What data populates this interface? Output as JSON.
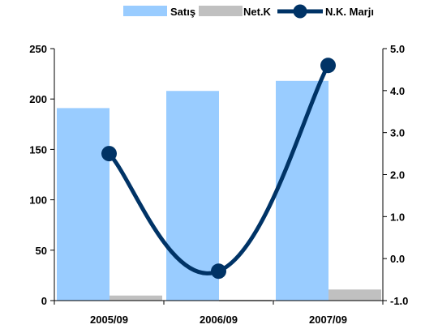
{
  "chart_data": {
    "type": "bar",
    "categories": [
      "2005/09",
      "2006/09",
      "2007/09"
    ],
    "series": [
      {
        "name": "Satış",
        "kind": "bar",
        "axis": "left",
        "color": "#99ccff",
        "values": [
          191,
          208,
          218
        ]
      },
      {
        "name": "Net.K",
        "kind": "bar",
        "axis": "left",
        "color": "#c0c0c0",
        "values": [
          5,
          -1,
          11
        ]
      },
      {
        "name": "N.K. Marjı",
        "kind": "line",
        "axis": "right",
        "color": "#003366",
        "values": [
          2.5,
          -0.3,
          4.6
        ]
      }
    ],
    "y_left": {
      "min": 0,
      "max": 250,
      "ticks": [
        0,
        50,
        100,
        150,
        200,
        250
      ],
      "tick_labels": [
        "0",
        "50",
        "100",
        "150",
        "200",
        "250"
      ]
    },
    "y_right": {
      "min": -1.0,
      "max": 5.0,
      "ticks": [
        -1.0,
        0.0,
        1.0,
        2.0,
        3.0,
        4.0,
        5.0
      ],
      "tick_labels": [
        "-1.0",
        "0.0",
        "1.0",
        "2.0",
        "3.0",
        "4.0",
        "5.0"
      ]
    },
    "legend_position": "top-right",
    "grid": false,
    "title": "",
    "xlabel": "",
    "ylabel": ""
  }
}
